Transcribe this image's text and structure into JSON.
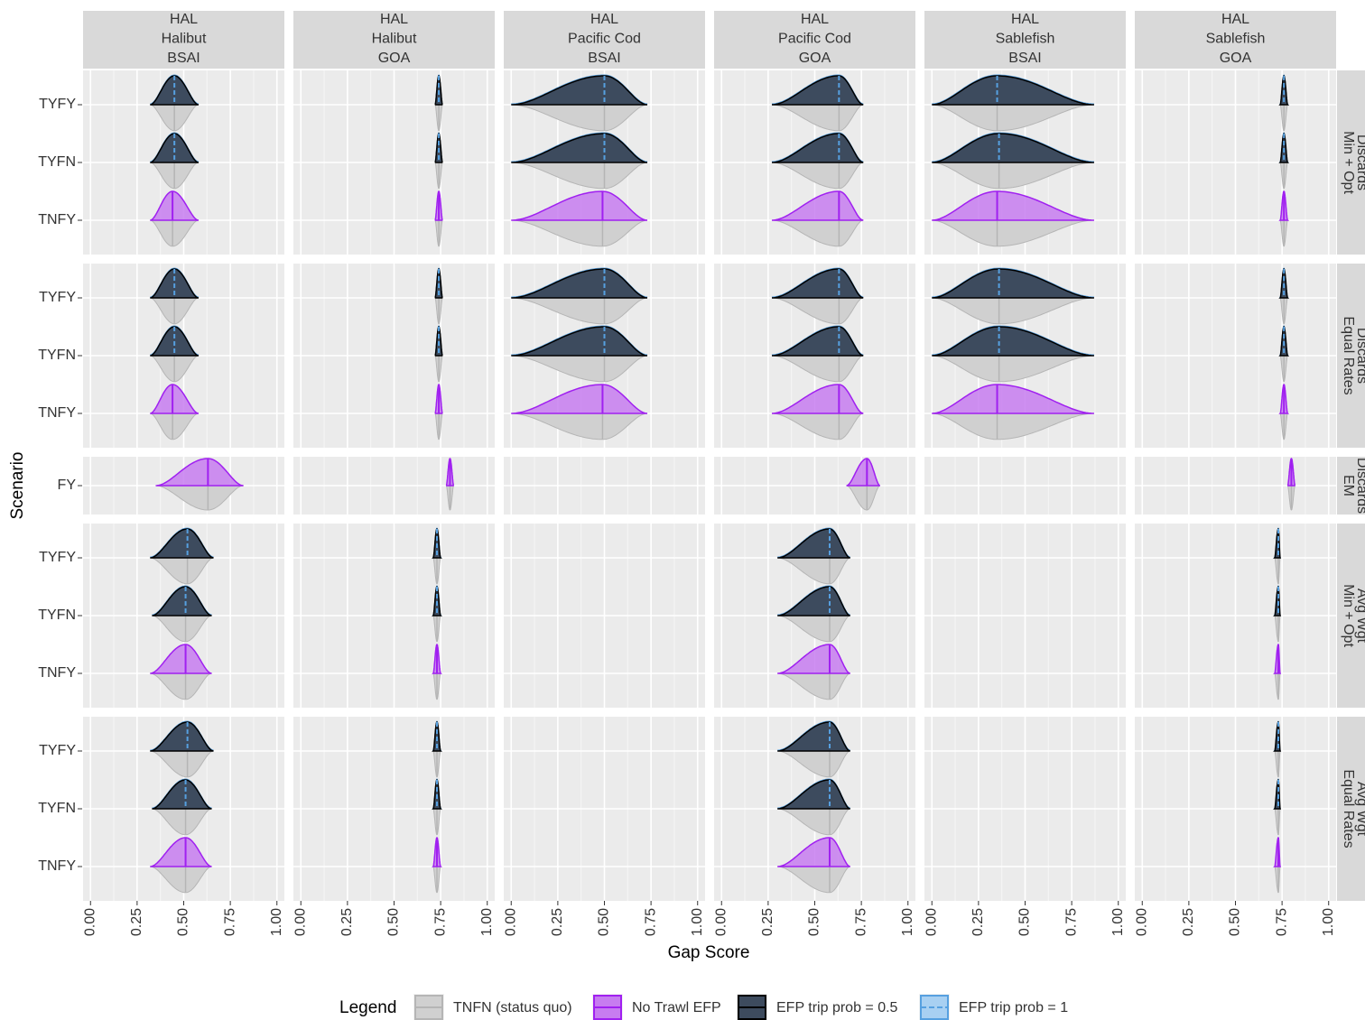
{
  "chart_data": {
    "type": "violin",
    "xlabel": "Gap Score",
    "ylabel": "Scenario",
    "xlim": [
      -0.04,
      1.04
    ],
    "xticks": [
      {
        "value": 0,
        "label": "0.00"
      },
      {
        "value": 0.25,
        "label": "0.25"
      },
      {
        "value": 0.5,
        "label": "0.50"
      },
      {
        "value": 0.75,
        "label": "0.75"
      },
      {
        "value": 1,
        "label": "1.00"
      }
    ],
    "columns": [
      [
        "HAL",
        "Halibut",
        "BSAI"
      ],
      [
        "HAL",
        "Halibut",
        "GOA"
      ],
      [
        "HAL",
        "Pacific Cod",
        "BSAI"
      ],
      [
        "HAL",
        "Pacific Cod",
        "GOA"
      ],
      [
        "HAL",
        "Sablefish",
        "BSAI"
      ],
      [
        "HAL",
        "Sablefish",
        "GOA"
      ]
    ],
    "legend": {
      "title": "Legend",
      "entries": [
        {
          "name": "TNFN (status quo)",
          "color": "#d0d0d0",
          "line": "#b5b5b5"
        },
        {
          "name": "No Trawl EFP",
          "color": "#c77cf0",
          "line": "#a020f0"
        },
        {
          "name": "EFP trip prob = 0.5",
          "color": "#3d4b5e",
          "line": "#000000"
        },
        {
          "name": "EFP trip prob = 1",
          "color": "#a8d0f2",
          "line": "#56a0e0"
        }
      ]
    },
    "rows": [
      {
        "strip": [
          "Discards",
          "Min + Opt"
        ],
        "categories": [
          "TYFY",
          "TYFN",
          "TNFY"
        ],
        "styles": [
          2,
          2,
          1
        ],
        "cells": [
          [
            [
              0.32,
              0.45,
              0.58
            ],
            [
              0.32,
              0.45,
              0.58
            ],
            [
              0.32,
              0.44,
              0.58
            ]
          ],
          [
            [
              0.72,
              0.74,
              0.76
            ],
            [
              0.72,
              0.74,
              0.76
            ],
            [
              0.72,
              0.74,
              0.76
            ]
          ],
          [
            [
              0.0,
              0.5,
              0.73
            ],
            [
              0.0,
              0.5,
              0.73
            ],
            [
              0.0,
              0.49,
              0.73
            ]
          ],
          [
            [
              0.27,
              0.63,
              0.76
            ],
            [
              0.27,
              0.63,
              0.76
            ],
            [
              0.27,
              0.63,
              0.76
            ]
          ],
          [
            [
              0.0,
              0.35,
              0.87
            ],
            [
              0.0,
              0.36,
              0.87
            ],
            [
              0.0,
              0.35,
              0.87
            ]
          ],
          [
            [
              0.74,
              0.76,
              0.78
            ],
            [
              0.74,
              0.76,
              0.78
            ],
            [
              0.74,
              0.76,
              0.78
            ]
          ]
        ]
      },
      {
        "strip": [
          "Discards",
          "Equal Rates"
        ],
        "categories": [
          "TYFY",
          "TYFN",
          "TNFY"
        ],
        "styles": [
          2,
          2,
          1
        ],
        "cells": [
          [
            [
              0.32,
              0.45,
              0.58
            ],
            [
              0.32,
              0.45,
              0.58
            ],
            [
              0.32,
              0.44,
              0.58
            ]
          ],
          [
            [
              0.72,
              0.74,
              0.76
            ],
            [
              0.72,
              0.74,
              0.76
            ],
            [
              0.72,
              0.74,
              0.76
            ]
          ],
          [
            [
              0.0,
              0.5,
              0.73
            ],
            [
              0.0,
              0.5,
              0.73
            ],
            [
              0.0,
              0.49,
              0.73
            ]
          ],
          [
            [
              0.27,
              0.63,
              0.76
            ],
            [
              0.27,
              0.63,
              0.76
            ],
            [
              0.27,
              0.63,
              0.76
            ]
          ],
          [
            [
              0.0,
              0.36,
              0.87
            ],
            [
              0.0,
              0.36,
              0.87
            ],
            [
              0.0,
              0.35,
              0.87
            ]
          ],
          [
            [
              0.74,
              0.76,
              0.78
            ],
            [
              0.74,
              0.76,
              0.78
            ],
            [
              0.74,
              0.76,
              0.78
            ]
          ]
        ]
      },
      {
        "strip": [
          "Discards",
          "EM"
        ],
        "categories": [
          "FY"
        ],
        "styles": [
          1
        ],
        "cells": [
          [
            [
              0.35,
              0.63,
              0.82
            ]
          ],
          [
            [
              0.78,
              0.8,
              0.82
            ]
          ],
          null,
          [
            [
              0.67,
              0.78,
              0.85
            ]
          ],
          null,
          [
            [
              0.78,
              0.8,
              0.82
            ]
          ]
        ]
      },
      {
        "strip": [
          "Avg Wgt",
          "Min + Opt"
        ],
        "categories": [
          "TYFY",
          "TYFN",
          "TNFY"
        ],
        "styles": [
          2,
          2,
          1
        ],
        "cells": [
          [
            [
              0.32,
              0.52,
              0.66
            ],
            [
              0.33,
              0.51,
              0.65
            ],
            [
              0.32,
              0.51,
              0.65
            ]
          ],
          [
            [
              0.71,
              0.73,
              0.75
            ],
            [
              0.71,
              0.73,
              0.75
            ],
            [
              0.71,
              0.73,
              0.75
            ]
          ],
          null,
          [
            [
              0.3,
              0.58,
              0.69
            ],
            [
              0.3,
              0.58,
              0.69
            ],
            [
              0.3,
              0.58,
              0.69
            ]
          ],
          null,
          [
            [
              0.71,
              0.73,
              0.74
            ],
            [
              0.71,
              0.73,
              0.74
            ],
            [
              0.71,
              0.73,
              0.74
            ]
          ]
        ]
      },
      {
        "strip": [
          "Avg Wgt",
          "Equal Rates"
        ],
        "categories": [
          "TYFY",
          "TYFN",
          "TNFY"
        ],
        "styles": [
          2,
          2,
          1
        ],
        "cells": [
          [
            [
              0.32,
              0.52,
              0.66
            ],
            [
              0.33,
              0.51,
              0.65
            ],
            [
              0.32,
              0.51,
              0.65
            ]
          ],
          [
            [
              0.71,
              0.73,
              0.75
            ],
            [
              0.71,
              0.73,
              0.75
            ],
            [
              0.71,
              0.73,
              0.75
            ]
          ],
          null,
          [
            [
              0.3,
              0.58,
              0.69
            ],
            [
              0.3,
              0.58,
              0.69
            ],
            [
              0.3,
              0.58,
              0.69
            ]
          ],
          null,
          [
            [
              0.71,
              0.73,
              0.74
            ],
            [
              0.71,
              0.73,
              0.74
            ],
            [
              0.71,
              0.73,
              0.74
            ]
          ]
        ]
      }
    ]
  }
}
